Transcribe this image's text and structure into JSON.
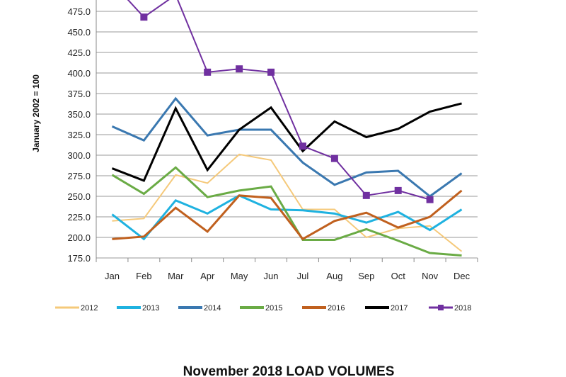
{
  "chart_data": {
    "type": "line",
    "title": "November 2018 LOAD VOLUMES",
    "xlabel": "",
    "ylabel": "January  2002 = 100",
    "ylim": [
      175,
      500
    ],
    "yticks": [
      "175.0",
      "200.0",
      "225.0",
      "250.0",
      "275.0",
      "300.0",
      "325.0",
      "350.0",
      "375.0",
      "400.0",
      "425.0",
      "450.0",
      "475.0"
    ],
    "categories": [
      "Jan",
      "Feb",
      "Mar",
      "Apr",
      "May",
      "Jun",
      "Jul",
      "Aug",
      "Sep",
      "Oct",
      "Nov",
      "Dec"
    ],
    "grid": true,
    "legend_position": "bottom",
    "series": [
      {
        "name": "2012",
        "color": "#f5c97a",
        "width": 2,
        "values": [
          220,
          223,
          276,
          266,
          301,
          294,
          234,
          234,
          200,
          211,
          214,
          183
        ]
      },
      {
        "name": "2013",
        "color": "#1fb2e0",
        "width": 3,
        "values": [
          228,
          198,
          245,
          229,
          251,
          234,
          233,
          229,
          218,
          231,
          209,
          234
        ]
      },
      {
        "name": "2014",
        "color": "#3a78b0",
        "width": 3,
        "values": [
          335,
          318,
          369,
          324,
          331,
          331,
          291,
          264,
          279,
          281,
          250,
          278
        ]
      },
      {
        "name": "2015",
        "color": "#6aab45",
        "width": 3,
        "values": [
          276,
          253,
          285,
          249,
          257,
          262,
          197,
          197,
          210,
          196,
          181,
          178
        ]
      },
      {
        "name": "2016",
        "color": "#c0601e",
        "width": 3,
        "values": [
          198,
          201,
          236,
          207,
          251,
          248,
          198,
          220,
          230,
          212,
          225,
          257
        ]
      },
      {
        "name": "2017",
        "color": "#000000",
        "width": 3,
        "values": [
          284,
          269,
          357,
          282,
          331,
          358,
          305,
          341,
          322,
          332,
          353,
          363
        ]
      },
      {
        "name": "2018",
        "color": "#7030a0",
        "width": 2,
        "marker": "square",
        "values": [
          510,
          468,
          495,
          401,
          405,
          401,
          311,
          296,
          251,
          257,
          246,
          null
        ]
      }
    ]
  }
}
